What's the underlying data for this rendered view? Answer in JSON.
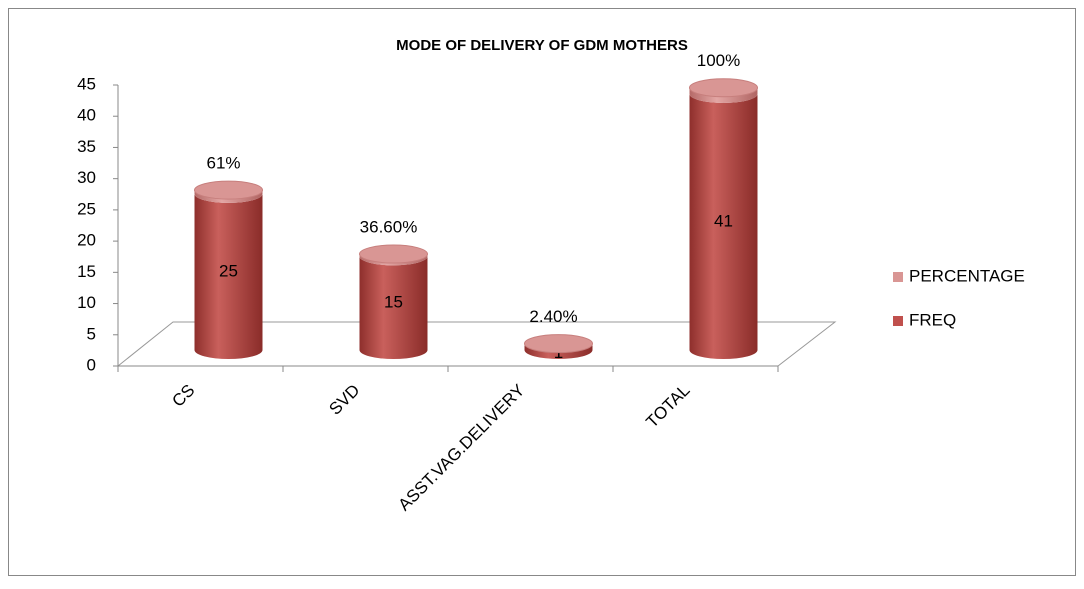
{
  "chart_data": {
    "type": "bar3d",
    "title": "MODE OF DELIVERY OF GDM MOTHERS",
    "categories": [
      "CS",
      "SVD",
      "ASST.VAG.DELIVERY",
      "TOTAL"
    ],
    "series": [
      {
        "name": "FREQ",
        "color": "#c0504d",
        "values": [
          25,
          15,
          1,
          41
        ]
      },
      {
        "name": "PERCENTAGE",
        "color": "#d99694",
        "values": [
          0.61,
          0.366,
          0.024,
          1
        ],
        "value_labels": [
          "61%",
          "36.60%",
          "2.40%",
          "100%"
        ]
      }
    ],
    "stacked": true,
    "ylim": [
      0,
      45
    ],
    "yticks": [
      0,
      5,
      10,
      15,
      20,
      25,
      30,
      35,
      40,
      45
    ],
    "legend": "right"
  }
}
